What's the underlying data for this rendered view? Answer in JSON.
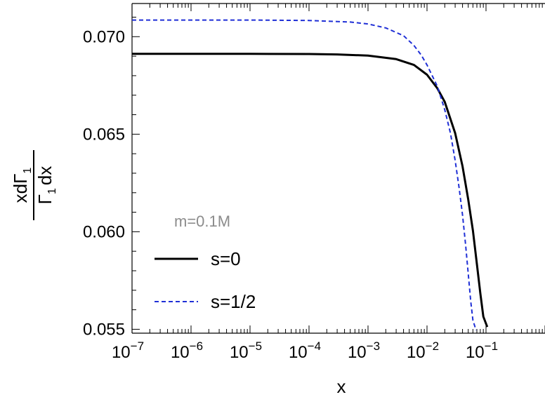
{
  "chart_data": {
    "type": "line",
    "x_scale": "log",
    "xlabel": "x",
    "ylabel": {
      "numerator": "xdΓ",
      "numerator_sub": "1",
      "denominator": "Γ",
      "denominator_sub": "1",
      "denominator_tail": "dx"
    },
    "xlim": [
      1e-07,
      1
    ],
    "ylim": [
      0.0548,
      0.0717
    ],
    "x_ticks": [
      {
        "value": 1e-07,
        "base": "10",
        "exp": "−7"
      },
      {
        "value": 1e-06,
        "base": "10",
        "exp": "−6"
      },
      {
        "value": 1e-05,
        "base": "10",
        "exp": "−5"
      },
      {
        "value": 0.0001,
        "base": "10",
        "exp": "−4"
      },
      {
        "value": 0.001,
        "base": "10",
        "exp": "−3"
      },
      {
        "value": 0.01,
        "base": "10",
        "exp": "−2"
      },
      {
        "value": 0.1,
        "base": "10",
        "exp": "−1"
      }
    ],
    "y_ticks": [
      {
        "value": 0.055,
        "label": "0.055"
      },
      {
        "value": 0.06,
        "label": "0.060"
      },
      {
        "value": 0.065,
        "label": "0.065"
      },
      {
        "value": 0.07,
        "label": "0.070"
      }
    ],
    "annotation": "m=0.1M",
    "legend_position": "lower-left",
    "series": [
      {
        "name": "s=0",
        "color": "#000000",
        "dash": "solid",
        "points": [
          [
            1e-07,
            0.06912
          ],
          [
            1e-06,
            0.06912
          ],
          [
            1e-05,
            0.06912
          ],
          [
            0.0001,
            0.06911
          ],
          [
            0.0003,
            0.06909
          ],
          [
            0.001,
            0.06903
          ],
          [
            0.003,
            0.06885
          ],
          [
            0.006,
            0.06855
          ],
          [
            0.01,
            0.06805
          ],
          [
            0.015,
            0.06735
          ],
          [
            0.02,
            0.06665
          ],
          [
            0.03,
            0.06505
          ],
          [
            0.04,
            0.06335
          ],
          [
            0.05,
            0.06165
          ],
          [
            0.06,
            0.06005
          ],
          [
            0.07,
            0.05835
          ],
          [
            0.08,
            0.05685
          ],
          [
            0.09,
            0.05565
          ],
          [
            0.105,
            0.05512
          ]
        ]
      },
      {
        "name": "s=1/2",
        "color": "#1f2fd6",
        "dash": "dashed",
        "points": [
          [
            1e-07,
            0.07085
          ],
          [
            1e-05,
            0.07085
          ],
          [
            0.0001,
            0.07083
          ],
          [
            0.0005,
            0.07075
          ],
          [
            0.001,
            0.07065
          ],
          [
            0.002,
            0.07045
          ],
          [
            0.004,
            0.07005
          ],
          [
            0.006,
            0.06955
          ],
          [
            0.008,
            0.06905
          ],
          [
            0.01,
            0.06855
          ],
          [
            0.015,
            0.06745
          ],
          [
            0.02,
            0.06625
          ],
          [
            0.025,
            0.06505
          ],
          [
            0.03,
            0.06365
          ],
          [
            0.035,
            0.06225
          ],
          [
            0.04,
            0.06085
          ],
          [
            0.045,
            0.05935
          ],
          [
            0.05,
            0.05785
          ],
          [
            0.055,
            0.05645
          ],
          [
            0.06,
            0.05545
          ],
          [
            0.068,
            0.05495
          ]
        ]
      }
    ]
  }
}
